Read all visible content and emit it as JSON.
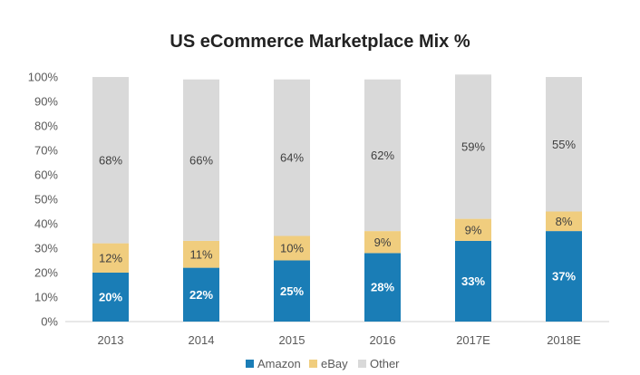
{
  "chart_data": {
    "type": "bar",
    "stacked": true,
    "title": "US eCommerce Marketplace Mix %",
    "xlabel": "",
    "ylabel": "",
    "ylim": [
      0,
      100
    ],
    "y_ticks": [
      "0%",
      "10%",
      "20%",
      "30%",
      "40%",
      "50%",
      "60%",
      "70%",
      "80%",
      "90%",
      "100%"
    ],
    "categories": [
      "2013",
      "2014",
      "2015",
      "2016",
      "2017E",
      "2018E"
    ],
    "series": [
      {
        "name": "Amazon",
        "color": "#1a7db6",
        "values": [
          20,
          22,
          25,
          28,
          33,
          37
        ],
        "labels": [
          "20%",
          "22%",
          "25%",
          "28%",
          "33%",
          "37%"
        ]
      },
      {
        "name": "eBay",
        "color": "#f0cd7e",
        "values": [
          12,
          11,
          10,
          9,
          9,
          8
        ],
        "labels": [
          "12%",
          "11%",
          "10%",
          "9%",
          "9%",
          "8%"
        ]
      },
      {
        "name": "Other",
        "color": "#d9d9d9",
        "values": [
          68,
          66,
          64,
          62,
          59,
          55
        ],
        "labels": [
          "68%",
          "66%",
          "64%",
          "62%",
          "59%",
          "55%"
        ]
      }
    ],
    "grid": false,
    "legend_position": "bottom"
  }
}
